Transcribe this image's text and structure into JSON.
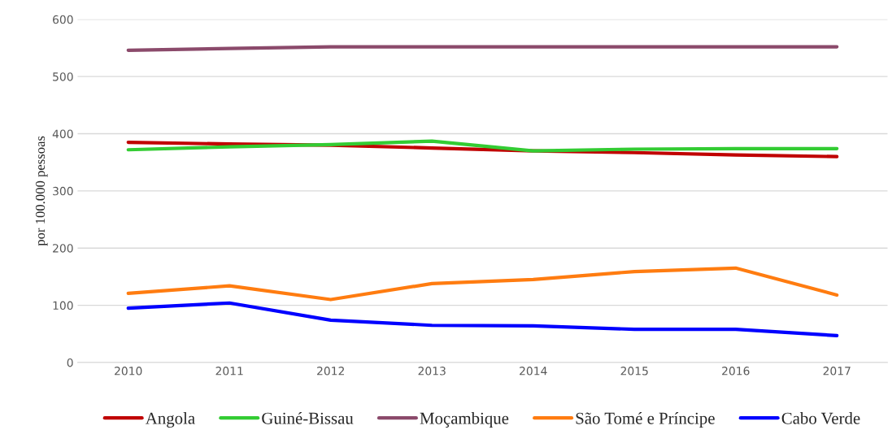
{
  "chart_data": {
    "type": "line",
    "ylabel": "por 100.000 pessoas",
    "categories": [
      "2010",
      "2011",
      "2012",
      "2013",
      "2014",
      "2015",
      "2016",
      "2017"
    ],
    "series": [
      {
        "name": "Angola",
        "color": "#c00000",
        "values": [
          385,
          382,
          380,
          375,
          370,
          367,
          363,
          360
        ]
      },
      {
        "name": "Guiné-Bissau",
        "color": "#33cc33",
        "values": [
          372,
          377,
          381,
          387,
          370,
          373,
          374,
          374
        ]
      },
      {
        "name": "Moçambique",
        "color": "#8b4a6b",
        "values": [
          546,
          549,
          552,
          552,
          552,
          552,
          552,
          552
        ]
      },
      {
        "name": "São Tomé e Príncipe",
        "color": "#ff7c10",
        "values": [
          121,
          134,
          110,
          138,
          145,
          159,
          165,
          118
        ]
      },
      {
        "name": "Cabo Verde",
        "color": "#0000ff",
        "values": [
          95,
          104,
          74,
          65,
          64,
          58,
          58,
          47
        ]
      }
    ],
    "ylim": [
      0,
      600
    ],
    "yticks": [
      0,
      100,
      200,
      300,
      400,
      500,
      600
    ],
    "grid": "y",
    "legend": "bottom",
    "marker": "none",
    "line_style": "solid"
  }
}
